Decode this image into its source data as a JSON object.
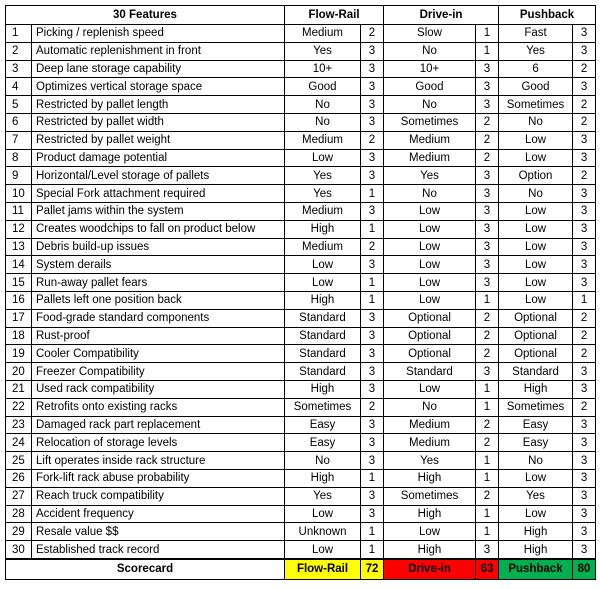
{
  "header": {
    "features_title": "30 Features",
    "columns": [
      "Flow-Rail",
      "Drive-in",
      "Pushback"
    ]
  },
  "rows": [
    {
      "n": "1",
      "feature": "Picking / replenish speed",
      "flow": "Medium",
      "flow_s": "2",
      "drive": "Slow",
      "drive_s": "1",
      "push": "Fast",
      "push_s": "3"
    },
    {
      "n": "2",
      "feature": "Automatic replenishment in front",
      "flow": "Yes",
      "flow_s": "3",
      "drive": "No",
      "drive_s": "1",
      "push": "Yes",
      "push_s": "3"
    },
    {
      "n": "3",
      "feature": "Deep lane storage capability",
      "flow": "10+",
      "flow_s": "3",
      "drive": "10+",
      "drive_s": "3",
      "push": "6",
      "push_s": "2"
    },
    {
      "n": "4",
      "feature": "Optimizes vertical storage space",
      "flow": "Good",
      "flow_s": "3",
      "drive": "Good",
      "drive_s": "3",
      "push": "Good",
      "push_s": "3"
    },
    {
      "n": "5",
      "feature": "Restricted by pallet length",
      "flow": "No",
      "flow_s": "3",
      "drive": "No",
      "drive_s": "3",
      "push": "Sometimes",
      "push_s": "2"
    },
    {
      "n": "6",
      "feature": "Restricted by pallet width",
      "flow": "No",
      "flow_s": "3",
      "drive": "Sometimes",
      "drive_s": "2",
      "push": "No",
      "push_s": "2"
    },
    {
      "n": "7",
      "feature": "Restricted by pallet weight",
      "flow": "Medium",
      "flow_s": "2",
      "drive": "Medium",
      "drive_s": "2",
      "push": "Low",
      "push_s": "3"
    },
    {
      "n": "8",
      "feature": "Product damage potential",
      "flow": "Low",
      "flow_s": "3",
      "drive": "Medium",
      "drive_s": "2",
      "push": "Low",
      "push_s": "3"
    },
    {
      "n": "9",
      "feature": "Horizontal/Level storage of pallets",
      "flow": "Yes",
      "flow_s": "3",
      "drive": "Yes",
      "drive_s": "3",
      "push": "Option",
      "push_s": "2"
    },
    {
      "n": "10",
      "feature": "Special Fork attachment required",
      "flow": "Yes",
      "flow_s": "1",
      "drive": "No",
      "drive_s": "3",
      "push": "No",
      "push_s": "3"
    },
    {
      "n": "11",
      "feature": "Pallet jams within the system",
      "flow": "Medium",
      "flow_s": "3",
      "drive": "Low",
      "drive_s": "3",
      "push": "Low",
      "push_s": "3"
    },
    {
      "n": "12",
      "feature": "Creates woodchips to fall on product below",
      "flow": "High",
      "flow_s": "1",
      "drive": "Low",
      "drive_s": "3",
      "push": "Low",
      "push_s": "3"
    },
    {
      "n": "13",
      "feature": "Debris build-up issues",
      "flow": "Medium",
      "flow_s": "2",
      "drive": "Low",
      "drive_s": "3",
      "push": "Low",
      "push_s": "3"
    },
    {
      "n": "14",
      "feature": "System derails",
      "flow": "Low",
      "flow_s": "3",
      "drive": "Low",
      "drive_s": "3",
      "push": "Low",
      "push_s": "3"
    },
    {
      "n": "15",
      "feature": "Run-away pallet fears",
      "flow": "Low",
      "flow_s": "1",
      "drive": "Low",
      "drive_s": "3",
      "push": "Low",
      "push_s": "3"
    },
    {
      "n": "16",
      "feature": "Pallets left one position back",
      "flow": "High",
      "flow_s": "1",
      "drive": "Low",
      "drive_s": "1",
      "push": "Low",
      "push_s": "1"
    },
    {
      "n": "17",
      "feature": "Food-grade standard components",
      "flow": "Standard",
      "flow_s": "3",
      "drive": "Optional",
      "drive_s": "2",
      "push": "Optional",
      "push_s": "2"
    },
    {
      "n": "18",
      "feature": "Rust-proof",
      "flow": "Standard",
      "flow_s": "3",
      "drive": "Optional",
      "drive_s": "2",
      "push": "Optional",
      "push_s": "2"
    },
    {
      "n": "19",
      "feature": "Cooler Compatibility",
      "flow": "Standard",
      "flow_s": "3",
      "drive": "Optional",
      "drive_s": "2",
      "push": "Optional",
      "push_s": "2"
    },
    {
      "n": "20",
      "feature": "Freezer Compatibility",
      "flow": "Standard",
      "flow_s": "3",
      "drive": "Standard",
      "drive_s": "3",
      "push": "Standard",
      "push_s": "3"
    },
    {
      "n": "21",
      "feature": "Used rack compatibility",
      "flow": "High",
      "flow_s": "3",
      "drive": "Low",
      "drive_s": "1",
      "push": "High",
      "push_s": "3"
    },
    {
      "n": "22",
      "feature": "Retrofits onto existing racks",
      "flow": "Sometimes",
      "flow_s": "2",
      "drive": "No",
      "drive_s": "1",
      "push": "Sometimes",
      "push_s": "2"
    },
    {
      "n": "23",
      "feature": "Damaged rack part replacement",
      "flow": "Easy",
      "flow_s": "3",
      "drive": "Medium",
      "drive_s": "2",
      "push": "Easy",
      "push_s": "3"
    },
    {
      "n": "24",
      "feature": "Relocation of storage levels",
      "flow": "Easy",
      "flow_s": "3",
      "drive": "Medium",
      "drive_s": "2",
      "push": "Easy",
      "push_s": "3"
    },
    {
      "n": "25",
      "feature": "Lift operates inside rack structure",
      "flow": "No",
      "flow_s": "3",
      "drive": "Yes",
      "drive_s": "1",
      "push": "No",
      "push_s": "3"
    },
    {
      "n": "26",
      "feature": "Fork-lift rack abuse probability",
      "flow": "High",
      "flow_s": "1",
      "drive": "High",
      "drive_s": "1",
      "push": "Low",
      "push_s": "3"
    },
    {
      "n": "27",
      "feature": "Reach truck compatibility",
      "flow": "Yes",
      "flow_s": "3",
      "drive": "Sometimes",
      "drive_s": "2",
      "push": "Yes",
      "push_s": "3"
    },
    {
      "n": "28",
      "feature": "Accident frequency",
      "flow": "Low",
      "flow_s": "3",
      "drive": "High",
      "drive_s": "1",
      "push": "Low",
      "push_s": "3"
    },
    {
      "n": "29",
      "feature": "Resale value $$",
      "flow": "Unknown",
      "flow_s": "1",
      "drive": "Low",
      "drive_s": "1",
      "push": "High",
      "push_s": "3"
    },
    {
      "n": "30",
      "feature": "Established track record",
      "flow": "Low",
      "flow_s": "1",
      "drive": "High",
      "drive_s": "3",
      "push": "High",
      "push_s": "3"
    }
  ],
  "scorecard": {
    "label": "Scorecard",
    "flow_label": "Flow-Rail",
    "flow_total": "72",
    "drive_label": "Drive-in",
    "drive_total": "63",
    "push_label": "Pushback",
    "push_total": "80"
  },
  "colors": {
    "flow": "#ffff00",
    "drive": "#ff0000",
    "push": "#00b050"
  }
}
